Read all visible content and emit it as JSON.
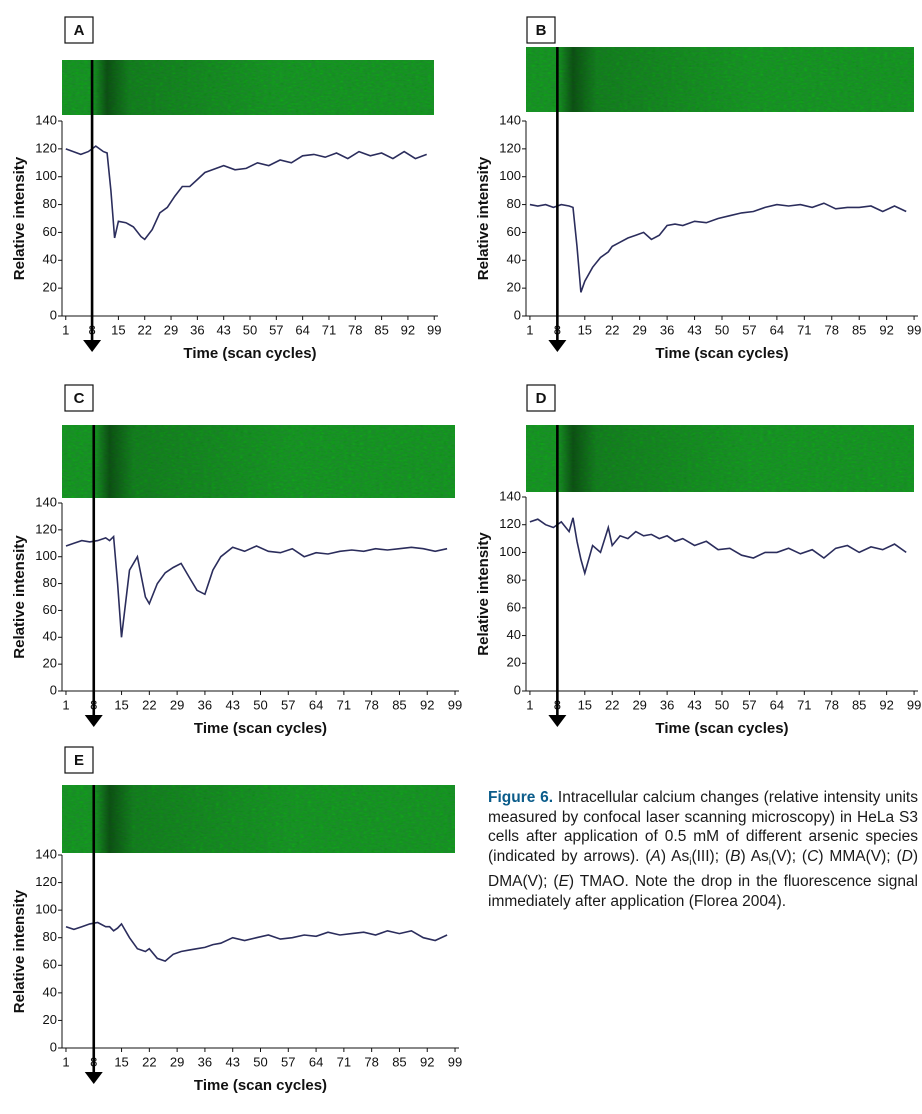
{
  "chart_data": [
    {
      "type": "line",
      "panel_label": "A",
      "xlabel": "Time (scan cycles)",
      "ylabel": "Relative intensity",
      "color": "#2b2d5c",
      "arrow_at": 8,
      "x": [
        1,
        3,
        5,
        7,
        9,
        11,
        12,
        13,
        14,
        15,
        17,
        19,
        21,
        22,
        24,
        26,
        28,
        30,
        32,
        34,
        36,
        38,
        40,
        43,
        46,
        49,
        52,
        55,
        58,
        61,
        64,
        67,
        70,
        73,
        76,
        79,
        82,
        85,
        88,
        91,
        94,
        97
      ],
      "values": [
        120,
        118,
        116,
        118,
        122,
        118,
        117,
        90,
        56,
        68,
        67,
        64,
        57,
        55,
        62,
        74,
        78,
        86,
        93,
        93,
        98,
        103,
        105,
        108,
        105,
        106,
        110,
        108,
        112,
        110,
        115,
        116,
        114,
        117,
        113,
        118,
        115,
        117,
        113,
        118,
        113,
        116
      ],
      "xlim": [
        0,
        100
      ],
      "ylim": [
        0,
        140
      ],
      "xticks": [
        1,
        8,
        15,
        22,
        29,
        36,
        43,
        50,
        57,
        64,
        71,
        78,
        85,
        92,
        99
      ],
      "yticks": [
        0,
        20,
        40,
        60,
        80,
        100,
        120,
        140
      ]
    },
    {
      "type": "line",
      "panel_label": "B",
      "xlabel": "Time (scan cycles)",
      "ylabel": "Relative intensity",
      "color": "#2b2d5c",
      "arrow_at": 8,
      "x": [
        1,
        3,
        5,
        7,
        9,
        11,
        12,
        13,
        14,
        15,
        17,
        19,
        21,
        22,
        24,
        26,
        28,
        30,
        32,
        34,
        36,
        38,
        40,
        43,
        46,
        49,
        52,
        55,
        58,
        61,
        64,
        67,
        70,
        73,
        76,
        79,
        82,
        85,
        88,
        91,
        94,
        97
      ],
      "values": [
        80,
        79,
        80,
        78,
        80,
        79,
        78,
        50,
        17,
        25,
        35,
        42,
        46,
        50,
        53,
        56,
        58,
        60,
        55,
        58,
        65,
        66,
        65,
        68,
        67,
        70,
        72,
        74,
        75,
        78,
        80,
        79,
        80,
        78,
        81,
        77,
        78,
        78,
        79,
        75,
        79,
        75
      ],
      "xlim": [
        0,
        100
      ],
      "ylim": [
        0,
        140
      ],
      "xticks": [
        1,
        8,
        15,
        22,
        29,
        36,
        43,
        50,
        57,
        64,
        71,
        78,
        85,
        92,
        99
      ],
      "yticks": [
        0,
        20,
        40,
        60,
        80,
        100,
        120,
        140
      ]
    },
    {
      "type": "line",
      "panel_label": "C",
      "xlabel": "Time (scan cycles)",
      "ylabel": "Relative intensity",
      "color": "#2b2d5c",
      "arrow_at": 8,
      "x": [
        1,
        3,
        5,
        7,
        9,
        11,
        12,
        13,
        14,
        15,
        17,
        19,
        21,
        22,
        24,
        26,
        28,
        30,
        32,
        34,
        36,
        38,
        40,
        43,
        46,
        49,
        52,
        55,
        58,
        61,
        64,
        67,
        70,
        73,
        76,
        79,
        82,
        85,
        88,
        91,
        94,
        97
      ],
      "values": [
        108,
        110,
        112,
        111,
        112,
        114,
        112,
        115,
        80,
        40,
        90,
        100,
        70,
        65,
        80,
        88,
        92,
        95,
        85,
        75,
        72,
        90,
        100,
        107,
        104,
        108,
        104,
        103,
        106,
        100,
        103,
        102,
        104,
        105,
        104,
        106,
        105,
        106,
        107,
        106,
        104,
        106
      ],
      "xlim": [
        0,
        100
      ],
      "ylim": [
        0,
        140
      ],
      "xticks": [
        1,
        8,
        15,
        22,
        29,
        36,
        43,
        50,
        57,
        64,
        71,
        78,
        85,
        92,
        99
      ],
      "yticks": [
        0,
        20,
        40,
        60,
        80,
        100,
        120,
        140
      ]
    },
    {
      "type": "line",
      "panel_label": "D",
      "xlabel": "Time (scan cycles)",
      "ylabel": "Relative intensity",
      "color": "#2b2d5c",
      "arrow_at": 8,
      "x": [
        1,
        3,
        5,
        7,
        9,
        11,
        12,
        13,
        14,
        15,
        17,
        19,
        21,
        22,
        24,
        26,
        28,
        30,
        32,
        34,
        36,
        38,
        40,
        43,
        46,
        49,
        52,
        55,
        58,
        61,
        64,
        67,
        70,
        73,
        76,
        79,
        82,
        85,
        88,
        91,
        94,
        97
      ],
      "values": [
        122,
        124,
        120,
        118,
        122,
        115,
        125,
        108,
        95,
        85,
        105,
        100,
        118,
        105,
        112,
        110,
        115,
        112,
        113,
        110,
        112,
        108,
        110,
        105,
        108,
        102,
        103,
        98,
        96,
        100,
        100,
        103,
        99,
        102,
        96,
        103,
        105,
        100,
        104,
        102,
        106,
        100
      ],
      "xlim": [
        0,
        100
      ],
      "ylim": [
        0,
        140
      ],
      "xticks": [
        1,
        8,
        15,
        22,
        29,
        36,
        43,
        50,
        57,
        64,
        71,
        78,
        85,
        92,
        99
      ],
      "yticks": [
        0,
        20,
        40,
        60,
        80,
        100,
        120,
        140
      ]
    },
    {
      "type": "line",
      "panel_label": "E",
      "xlabel": "Time (scan cycles)",
      "ylabel": "Relative intensity",
      "color": "#2b2d5c",
      "arrow_at": 8,
      "x": [
        1,
        3,
        5,
        7,
        9,
        11,
        12,
        13,
        14,
        15,
        17,
        19,
        21,
        22,
        24,
        26,
        28,
        30,
        32,
        34,
        36,
        38,
        40,
        43,
        46,
        49,
        52,
        55,
        58,
        61,
        64,
        67,
        70,
        73,
        76,
        79,
        82,
        85,
        88,
        91,
        94,
        97
      ],
      "values": [
        88,
        86,
        88,
        90,
        91,
        88,
        88,
        85,
        87,
        90,
        80,
        72,
        70,
        72,
        65,
        63,
        68,
        70,
        71,
        72,
        73,
        75,
        76,
        80,
        78,
        80,
        82,
        79,
        80,
        82,
        81,
        84,
        82,
        83,
        84,
        82,
        85,
        83,
        85,
        80,
        78,
        82
      ],
      "xlim": [
        0,
        100
      ],
      "ylim": [
        0,
        140
      ],
      "xticks": [
        1,
        8,
        15,
        22,
        29,
        36,
        43,
        50,
        57,
        64,
        71,
        78,
        85,
        92,
        99
      ],
      "yticks": [
        0,
        20,
        40,
        60,
        80,
        100,
        120,
        140
      ]
    }
  ],
  "caption": {
    "segments": [
      {
        "text": "Figure 6.",
        "style": "bold"
      },
      {
        "text": " Intracellular calcium changes (relative intensity units measured by confocal laser scanning microscopy) in HeLa S3 cells after application of 0.5 mM of different arsenic species (indicated by arrows). (",
        "style": "normal"
      },
      {
        "text": "A",
        "style": "italic"
      },
      {
        "text": ") As",
        "style": "normal"
      },
      {
        "text": "i",
        "style": "sub"
      },
      {
        "text": "(III); (",
        "style": "normal"
      },
      {
        "text": "B",
        "style": "italic"
      },
      {
        "text": ") As",
        "style": "normal"
      },
      {
        "text": "i",
        "style": "sub"
      },
      {
        "text": "(V); (",
        "style": "normal"
      },
      {
        "text": "C",
        "style": "italic"
      },
      {
        "text": ") MMA(V); (",
        "style": "normal"
      },
      {
        "text": "D",
        "style": "italic"
      },
      {
        "text": ") DMA(V); (",
        "style": "normal"
      },
      {
        "text": "E",
        "style": "italic"
      },
      {
        "text": ") TMAO. Note the drop in the fluorescence signal immediately after application (Florea 2004).",
        "style": "normal"
      }
    ]
  }
}
